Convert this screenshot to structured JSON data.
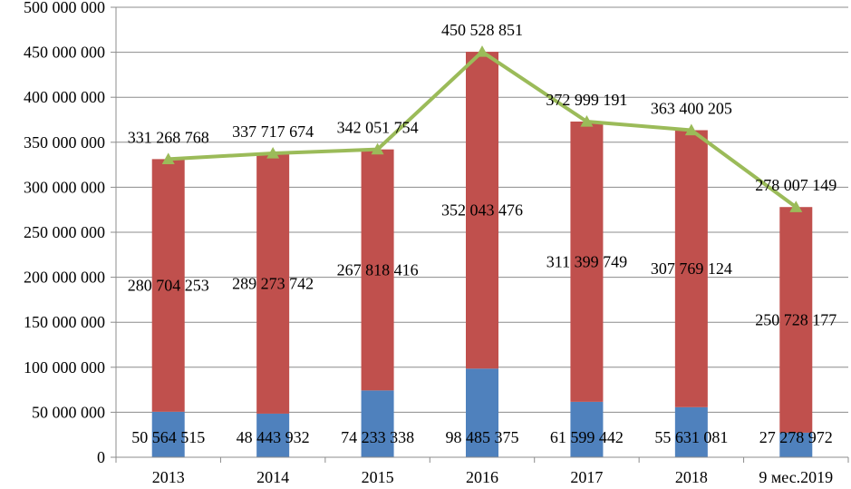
{
  "chart_data": {
    "type": "bar",
    "stacked": true,
    "categories": [
      "2013",
      "2014",
      "2015",
      "2016",
      "2017",
      "2018",
      "9 мес.2019"
    ],
    "series": [
      {
        "type": "bar",
        "color": "#4f81bd",
        "values": [
          50564515,
          48443932,
          74233338,
          98485375,
          61599442,
          55631081,
          27278972
        ],
        "labels": [
          "50 564 515",
          "48 443 932",
          "74 233 338",
          "98 485 375",
          "61 599 442",
          "55 631 081",
          "27 278 972"
        ]
      },
      {
        "type": "bar",
        "color": "#c0504d",
        "values": [
          280704253,
          289273742,
          267818416,
          352043476,
          311399749,
          307769124,
          250728177
        ],
        "labels": [
          "280 704 253",
          "289 273 742",
          "267 818 416",
          "352 043 476",
          "311 399 749",
          "307 769 124",
          "250 728 177"
        ]
      },
      {
        "type": "line",
        "color": "#9bbb59",
        "values": [
          331268768,
          337717674,
          342051754,
          450528851,
          372999191,
          363400205,
          278007149
        ],
        "labels": [
          "331 268 768",
          "337 717 674",
          "342 051 754",
          "450 528 851",
          "372 999 191",
          "363 400 205",
          "278 007 149"
        ]
      }
    ],
    "ylim": [
      0,
      500000000
    ],
    "yticks": [
      0,
      50000000,
      100000000,
      150000000,
      200000000,
      250000000,
      300000000,
      350000000,
      400000000,
      450000000,
      500000000
    ],
    "ytick_labels": [
      "0",
      "50 000 000",
      "100 000 000",
      "150 000 000",
      "200 000 000",
      "250 000 000",
      "300 000 000",
      "350 000 000",
      "400 000 000",
      "450 000 000",
      "500 000 000"
    ],
    "grid": true,
    "legend": "none",
    "colors": {
      "grid": "#8c8c8c",
      "axis": "#8c8c8c"
    }
  }
}
